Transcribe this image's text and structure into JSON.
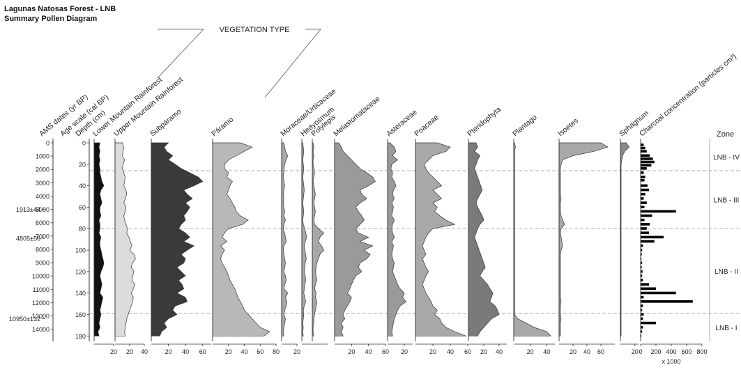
{
  "chart_data": {
    "type": "area",
    "title": "Lagunas Natosas Forest - LNB",
    "subtitle": "Summary Pollen Diagram",
    "group_label": "VEGETATION TYPE",
    "axis_labels": {
      "ams": "AMS dates (yr BP)",
      "age": "Age scale (cal BP)",
      "depth": "Depth (cm)",
      "zone": "Zone",
      "charcoal_unit": "x 1000"
    },
    "ams_dates": [
      {
        "label": "1913±44",
        "depth": 62
      },
      {
        "label": "4805±56",
        "depth": 89
      },
      {
        "label": "10950±132",
        "depth": 164
      }
    ],
    "age_ticks": [
      0,
      1000,
      2000,
      3000,
      4000,
      5000,
      6000,
      7000,
      8000,
      9000,
      10000,
      11000,
      12000,
      13000,
      14000
    ],
    "age_tick_labels": [
      "0",
      "1000",
      "2000",
      "3000",
      "4000",
      "5000",
      "6000",
      "7000",
      "8000",
      "9000",
      "10000",
      "11000",
      "12000",
      "13000",
      "14000"
    ],
    "depth_ticks": [
      0,
      20,
      40,
      60,
      80,
      100,
      120,
      140,
      160,
      180
    ],
    "depth_tick_labels": [
      "0",
      "20",
      "40",
      "60",
      "80",
      "100",
      "120",
      "140",
      "160",
      "180"
    ],
    "depths": [
      0,
      4,
      8,
      12,
      16,
      20,
      24,
      28,
      32,
      36,
      40,
      44,
      48,
      52,
      56,
      60,
      64,
      68,
      72,
      76,
      80,
      84,
      88,
      92,
      96,
      100,
      104,
      108,
      112,
      116,
      120,
      124,
      128,
      132,
      136,
      140,
      144,
      148,
      152,
      156,
      160,
      164,
      168,
      172,
      176,
      180
    ],
    "zone_boundaries": [
      26,
      80,
      159
    ],
    "zones": [
      {
        "label": "LNB - IV",
        "from": 0,
        "to": 26
      },
      {
        "label": "LNB - III",
        "from": 26,
        "to": 80
      },
      {
        "label": "LNB - II",
        "from": 80,
        "to": 159
      },
      {
        "label": "LNB - I",
        "from": 159,
        "to": 185
      }
    ],
    "taxa": [
      {
        "name": "Lower Mountain Rainforest",
        "color": "#111111",
        "xmax": 20,
        "ticks": [
          20
        ],
        "tick_labels": [
          "20"
        ],
        "values": [
          6,
          5,
          6,
          5,
          6,
          5,
          6,
          6,
          7,
          8,
          10,
          7,
          6,
          7,
          8,
          6,
          6,
          7,
          5,
          6,
          6,
          5,
          7,
          6,
          6,
          7,
          8,
          9,
          10,
          9,
          7,
          6,
          7,
          8,
          7,
          6,
          9,
          8,
          7,
          6,
          7,
          6,
          5,
          6,
          4,
          5
        ]
      },
      {
        "name": "Upper Mountain Rainforest",
        "color": "#dcdcdc",
        "xmax": 40,
        "ticks": [
          20,
          40
        ],
        "tick_labels": [
          "20",
          "40"
        ],
        "values": [
          10,
          12,
          11,
          10,
          13,
          11,
          10,
          12,
          14,
          13,
          12,
          15,
          16,
          14,
          12,
          15,
          14,
          12,
          13,
          15,
          17,
          16,
          19,
          21,
          23,
          20,
          26,
          28,
          24,
          22,
          26,
          24,
          23,
          27,
          25,
          22,
          25,
          24,
          22,
          20,
          18,
          16,
          15,
          14,
          13,
          14
        ]
      },
      {
        "name": "Subpáramo",
        "color": "#3a3a3a",
        "xmax": 70,
        "ticks": [
          20,
          40,
          60
        ],
        "tick_labels": [
          "20",
          "40",
          "60"
        ],
        "values": [
          20,
          15,
          18,
          25,
          20,
          28,
          35,
          45,
          55,
          60,
          50,
          38,
          42,
          48,
          40,
          45,
          42,
          38,
          40,
          35,
          32,
          40,
          45,
          38,
          50,
          42,
          35,
          40,
          38,
          30,
          35,
          40,
          32,
          36,
          38,
          30,
          40,
          42,
          28,
          25,
          30,
          20,
          15,
          18,
          12,
          10
        ]
      },
      {
        "name": "Páramo",
        "color": "#b8b8b8",
        "xmax": 80,
        "ticks": [
          20,
          40,
          60,
          80
        ],
        "tick_labels": [
          "20",
          "40",
          "60",
          "80"
        ],
        "values": [
          35,
          50,
          40,
          30,
          20,
          15,
          15,
          20,
          18,
          25,
          22,
          20,
          18,
          22,
          25,
          28,
          30,
          35,
          45,
          38,
          20,
          15,
          12,
          18,
          10,
          15,
          12,
          10,
          12,
          15,
          18,
          20,
          22,
          25,
          28,
          30,
          32,
          35,
          38,
          40,
          45,
          50,
          55,
          60,
          72,
          65
        ]
      },
      {
        "name": "Moraceae/Urticaceae",
        "color": "#a8a8a8",
        "xmax": 20,
        "ticks": [
          20
        ],
        "tick_labels": [
          "20"
        ],
        "values": [
          3,
          4,
          5,
          8,
          6,
          4,
          3,
          3,
          2,
          3,
          4,
          3,
          2,
          3,
          2,
          3,
          4,
          3,
          5,
          3,
          2,
          4,
          5,
          6,
          3,
          2,
          3,
          4,
          5,
          4,
          3,
          5,
          6,
          4,
          3,
          8,
          5,
          7,
          6,
          4,
          3,
          5,
          4,
          3,
          2,
          3
        ]
      },
      {
        "name": "Hedyosmum",
        "color": "#a8a8a8",
        "xmax": 20,
        "ticks": [],
        "tick_labels": [],
        "values": [
          2,
          3,
          4,
          3,
          2,
          3,
          4,
          3,
          2,
          3,
          4,
          5,
          4,
          3,
          2,
          3,
          4,
          3,
          2,
          3,
          6,
          8,
          10,
          7,
          5,
          6,
          8,
          9,
          7,
          6,
          5,
          7,
          8,
          6,
          5,
          4,
          6,
          8,
          5,
          3,
          4,
          3,
          2,
          3,
          2,
          3
        ]
      },
      {
        "name": "Polylepis",
        "color": "#a8a8a8",
        "xmax": 20,
        "ticks": [],
        "tick_labels": [],
        "values": [
          1,
          2,
          1,
          2,
          1,
          1,
          2,
          3,
          2,
          1,
          2,
          3,
          4,
          3,
          2,
          3,
          4,
          3,
          2,
          3,
          8,
          15,
          10,
          8,
          12,
          15,
          10,
          8,
          6,
          5,
          4,
          5,
          6,
          4,
          3,
          5,
          4,
          6,
          5,
          4,
          3,
          2,
          2,
          1,
          1,
          2
        ]
      },
      {
        "name": "Melastomataceae",
        "color": "#9a9a9a",
        "xmax": 60,
        "ticks": [
          20,
          40,
          60
        ],
        "tick_labels": [
          "20",
          "40",
          "60"
        ],
        "values": [
          5,
          8,
          10,
          15,
          20,
          25,
          30,
          38,
          45,
          48,
          40,
          30,
          32,
          38,
          30,
          25,
          28,
          32,
          35,
          30,
          25,
          28,
          40,
          30,
          45,
          35,
          42,
          38,
          30,
          28,
          32,
          25,
          22,
          20,
          18,
          15,
          20,
          18,
          15,
          12,
          10,
          12,
          8,
          10,
          8,
          10
        ]
      },
      {
        "name": "Asteraceae",
        "color": "#9a9a9a",
        "xmax": 30,
        "ticks": [
          20
        ],
        "tick_labels": [
          "20"
        ],
        "values": [
          3,
          8,
          10,
          6,
          12,
          5,
          4,
          6,
          5,
          8,
          10,
          7,
          6,
          8,
          5,
          7,
          6,
          5,
          8,
          6,
          5,
          6,
          8,
          5,
          7,
          6,
          5,
          6,
          8,
          7,
          6,
          8,
          10,
          12,
          15,
          20,
          18,
          22,
          15,
          12,
          10,
          8,
          7,
          6,
          5,
          6
        ]
      },
      {
        "name": "Poaceae",
        "color": "#a8a8a8",
        "xmax": 60,
        "ticks": [
          20,
          40,
          60
        ],
        "tick_labels": [
          "20",
          "40",
          "60"
        ],
        "values": [
          25,
          40,
          35,
          20,
          15,
          10,
          12,
          15,
          20,
          25,
          30,
          20,
          25,
          30,
          20,
          25,
          22,
          28,
          35,
          45,
          20,
          15,
          12,
          10,
          8,
          10,
          12,
          8,
          10,
          12,
          15,
          12,
          10,
          8,
          10,
          12,
          15,
          18,
          20,
          25,
          22,
          28,
          30,
          35,
          45,
          58
        ]
      },
      {
        "name": "Pteridophyta",
        "color": "#7a7a7a",
        "xmax": 50,
        "ticks": [
          20,
          40
        ],
        "tick_labels": [
          "20",
          "40"
        ],
        "values": [
          10,
          12,
          8,
          15,
          12,
          10,
          8,
          10,
          12,
          14,
          16,
          18,
          15,
          12,
          10,
          12,
          15,
          18,
          20,
          15,
          12,
          10,
          8,
          10,
          12,
          14,
          16,
          18,
          20,
          22,
          18,
          15,
          20,
          25,
          28,
          32,
          30,
          28,
          35,
          38,
          40,
          30,
          25,
          20,
          15,
          12
        ]
      },
      {
        "name": "Plantago",
        "color": "#a8a8a8",
        "xmax": 50,
        "ticks": [
          20,
          40
        ],
        "tick_labels": [
          "20",
          "40"
        ],
        "values": [
          1,
          2,
          1,
          1,
          1,
          1,
          1,
          1,
          1,
          1,
          1,
          1,
          1,
          1,
          1,
          1,
          1,
          1,
          1,
          1,
          1,
          1,
          1,
          1,
          1,
          1,
          1,
          1,
          1,
          1,
          1,
          1,
          1,
          1,
          1,
          1,
          1,
          1,
          1,
          1,
          1,
          5,
          15,
          25,
          40,
          45
        ]
      },
      {
        "name": "Isoetes",
        "color": "#a8a8a8",
        "xmax": 80,
        "ticks": [
          20,
          40,
          60
        ],
        "tick_labels": [
          "20",
          "40",
          "60"
        ],
        "values": [
          60,
          70,
          50,
          20,
          5,
          3,
          2,
          2,
          2,
          2,
          2,
          2,
          2,
          3,
          2,
          2,
          2,
          3,
          5,
          8,
          3,
          2,
          3,
          4,
          5,
          3,
          2,
          2,
          2,
          2,
          2,
          2,
          2,
          2,
          2,
          2,
          2,
          3,
          2,
          2,
          2,
          3,
          2,
          2,
          2,
          2
        ]
      },
      {
        "name": "Sphagnum",
        "color": "#8a8a8a",
        "xmax": 25,
        "ticks": [
          20
        ],
        "tick_labels": [
          "20"
        ],
        "values": [
          8,
          12,
          6,
          3,
          2,
          1,
          1,
          1,
          1,
          1,
          1,
          1,
          1,
          1,
          1,
          1,
          1,
          1,
          1,
          1,
          1,
          1,
          1,
          1,
          1,
          1,
          1,
          1,
          1,
          1,
          1,
          1,
          1,
          1,
          1,
          1,
          1,
          1,
          1,
          1,
          1,
          1,
          1,
          1,
          1,
          1
        ]
      }
    ],
    "charcoal": {
      "name": "Charcoal concentration (particles cm³)",
      "xmax": 800,
      "ticks": [
        0,
        200,
        400,
        600,
        800
      ],
      "tick_labels": [
        "0",
        "200",
        "400",
        "600",
        "800"
      ],
      "depths": [
        2,
        5,
        8,
        12,
        15,
        18,
        21,
        24,
        28,
        32,
        35,
        40,
        44,
        48,
        52,
        56,
        60,
        64,
        68,
        72,
        76,
        80,
        84,
        88,
        92,
        96,
        100,
        104,
        108,
        112,
        116,
        120,
        124,
        128,
        132,
        136,
        140,
        144,
        148,
        152,
        156,
        160,
        164,
        168,
        172,
        176,
        180
      ],
      "values": [
        40,
        60,
        80,
        120,
        160,
        180,
        140,
        80,
        40,
        60,
        50,
        90,
        110,
        60,
        40,
        80,
        50,
        460,
        150,
        50,
        120,
        80,
        110,
        300,
        180,
        30,
        20,
        15,
        10,
        20,
        15,
        25,
        20,
        30,
        110,
        200,
        460,
        40,
        680,
        30,
        20,
        40,
        30,
        200,
        30,
        20,
        10
      ]
    }
  }
}
